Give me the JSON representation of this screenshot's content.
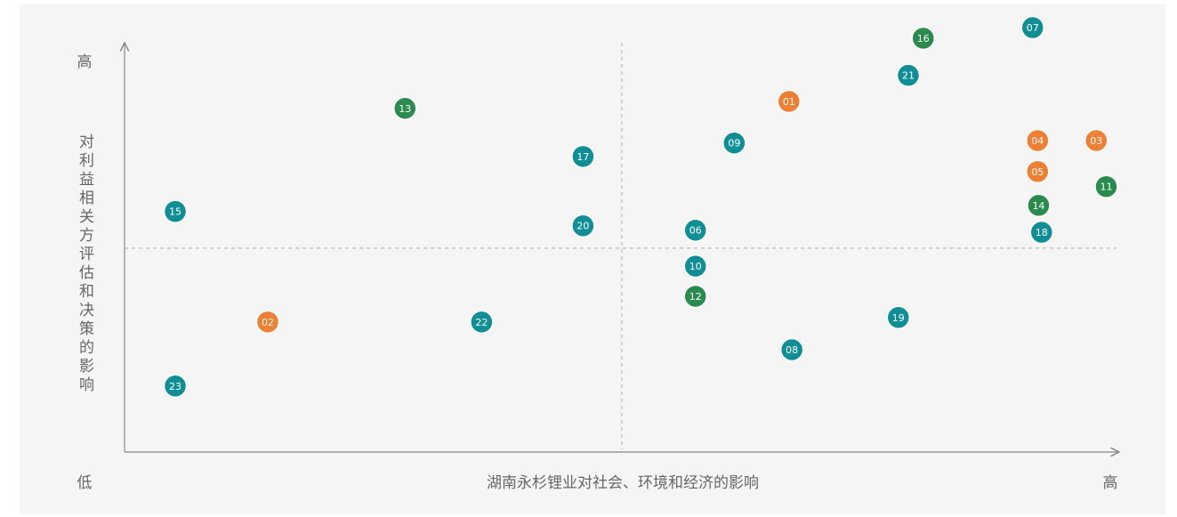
{
  "chart_data": {
    "type": "scatter",
    "x_label": "湖南永杉锂业对社会、环境和经济的影响",
    "y_label": "对利益相关方评估和决策的影响",
    "low_label": "低",
    "y_high_label": "高",
    "x_high_label": "高",
    "xlim": [
      0,
      100
    ],
    "ylim": [
      0,
      110
    ],
    "x_divider": 50,
    "y_divider": 50,
    "series": [
      {
        "color": "#ef7f32",
        "labels": [
          "01",
          "02",
          "03",
          "04",
          "05"
        ],
        "x": [
          66.8,
          14.4,
          97.7,
          91.8,
          91.8
        ],
        "values": [
          86.0,
          31.9,
          76.4,
          76.4,
          68.8
        ]
      },
      {
        "color": "#0f8f95",
        "labels": [
          "06",
          "07",
          "08",
          "09",
          "10",
          "15",
          "17",
          "18",
          "19",
          "20",
          "21",
          "22",
          "23"
        ],
        "x": [
          57.4,
          91.3,
          67.1,
          61.3,
          57.4,
          5.1,
          46.1,
          92.2,
          77.8,
          46.1,
          78.8,
          35.9,
          5.1
        ],
        "values": [
          54.4,
          104.1,
          25.1,
          75.8,
          45.6,
          59.0,
          72.5,
          53.9,
          33.0,
          55.5,
          92.4,
          31.9,
          16.2
        ]
      },
      {
        "color": "#2a8b4f",
        "labels": [
          "11",
          "12",
          "13",
          "14",
          "16"
        ],
        "x": [
          98.7,
          57.4,
          28.2,
          91.9,
          80.3
        ],
        "values": [
          65.1,
          38.2,
          84.3,
          60.5,
          101.5
        ]
      }
    ]
  }
}
